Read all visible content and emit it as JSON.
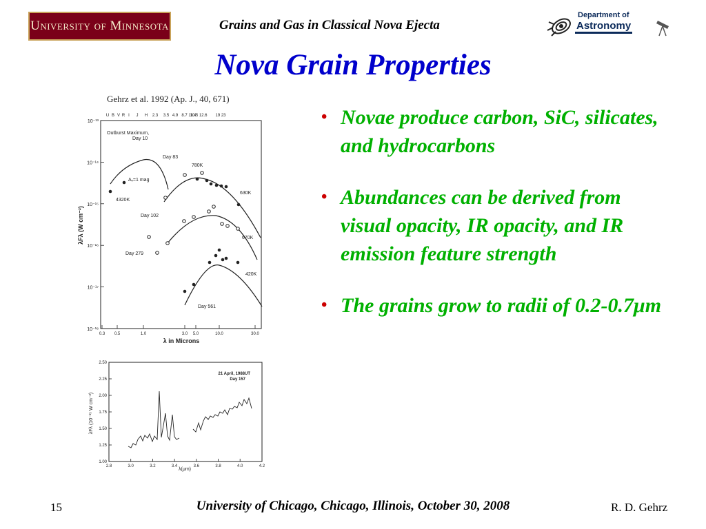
{
  "header": {
    "left_logo": "University of Minnesota",
    "title": "Grains and Gas in Classical Nova Ejecta",
    "right_logo_line1": "Department of",
    "right_logo_line2": "Astronomy"
  },
  "slide": {
    "title": "Nova Grain Properties",
    "citation": "Gehrz et al. 1992 (Ap. J., 40, 671)"
  },
  "figure_top": {
    "band_labels": [
      "U",
      "B",
      "V",
      "R",
      "I",
      "J",
      "H",
      "2.3",
      "3.5",
      "4.9",
      "8.7 11.4",
      "10.5 12.6",
      "19 23"
    ],
    "y_ticks": [
      "10⁻¹³",
      "10⁻¹⁴",
      "10⁻¹⁵",
      "10⁻¹⁶",
      "10⁻¹⁷",
      "10⁻¹⁸"
    ],
    "x_ticks": [
      "0.3",
      "0.5",
      "1.0",
      "3.0",
      "5.0",
      "10.0",
      "30.0"
    ],
    "ylabel": "λFλ (W cm⁻²)",
    "xlabel": "λ in Microns",
    "annotations": {
      "outburst": "Outburst Maximum,",
      "outburst_day": "Day 10",
      "av": "Aᵥ=1 mag",
      "t4320": "4320K",
      "day83": "Day 83",
      "t780": "780K",
      "t630": "630K",
      "day102": "Day 102",
      "t670": "670K",
      "day279": "Day 279",
      "t420": "420K",
      "day561": "Day 561"
    }
  },
  "figure_bottom": {
    "y_ticks": [
      "2.50",
      "2.25",
      "2.00",
      "1.75",
      "1.50",
      "1.25",
      "1.00"
    ],
    "x_ticks": [
      "2.8",
      "3.0",
      "3.2",
      "3.4",
      "3.6",
      "3.8",
      "4.0",
      "4.2"
    ],
    "ylabel": "λFλ (10⁻¹⁵ W cm⁻²)",
    "xlabel": "λ(μm)",
    "date": "21 April, 1988UT",
    "day": "Day 157"
  },
  "bullets": [
    "Novae produce carbon, SiC, silicates, and hydrocarbons",
    "Abundances can be derived  from visual opacity, IR opacity, and IR emission feature strength",
    "The grains grow to radii of  0.2-0.7μm"
  ],
  "footer": {
    "slide_number": "15",
    "venue": "University of Chicago, Chicago, Illinois, October 30, 2008",
    "author": "R. D. Gehrz"
  }
}
